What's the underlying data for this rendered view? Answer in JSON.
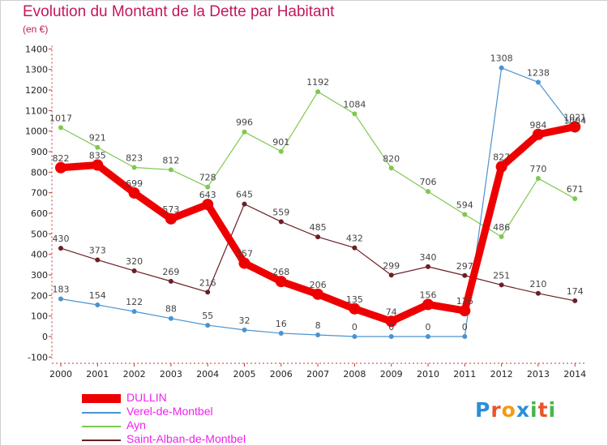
{
  "title": "Evolution du Montant de la Dette par Habitant",
  "unit_label": "(en €)",
  "logo": {
    "text": "Proxiti",
    "letters": [
      "P",
      "r",
      "o",
      "x",
      "i",
      "t",
      "i"
    ],
    "colors": [
      "#2b8fd6",
      "#e8542a",
      "#f39c12",
      "#2b8fd6",
      "#43b649",
      "#e8542a",
      "#43b649"
    ]
  },
  "chart_data": {
    "type": "line",
    "x": [
      "2000",
      "2001",
      "2002",
      "2003",
      "2004",
      "2005",
      "2006",
      "2007",
      "2008",
      "2009",
      "2010",
      "2011",
      "2012",
      "2013",
      "2014"
    ],
    "ylim": [
      -100,
      1400
    ],
    "yticks": [
      "-100",
      "0",
      "100",
      "200",
      "300",
      "400",
      "500",
      "600",
      "700",
      "800",
      "900",
      "1000",
      "1100",
      "1200",
      "1300",
      "1400"
    ],
    "grid": false,
    "legend_position": "bottom-left",
    "series": [
      {
        "name": "Saint-Alban-de-Montbel",
        "color": "#6b1f24",
        "width": 1.2,
        "label_color": "#444444",
        "values": [
          430,
          373,
          320,
          269,
          216,
          645,
          559,
          485,
          432,
          299,
          340,
          297,
          251,
          210,
          174
        ],
        "labels": [
          "430",
          "373",
          "320",
          "269",
          "216",
          "645",
          "559",
          "485",
          "432",
          "299",
          "340",
          "297",
          "251",
          "210",
          "174"
        ]
      },
      {
        "name": "Ayn",
        "color": "#7ec850",
        "width": 1.2,
        "label_color": "#444444",
        "values": [
          1017,
          921,
          823,
          812,
          728,
          996,
          901,
          1192,
          1084,
          820,
          706,
          594,
          486,
          770,
          671
        ],
        "labels": [
          "1017",
          "921",
          "823",
          "812",
          "728",
          "996",
          "901",
          "1192",
          "1084",
          "820",
          "706",
          "594",
          "486",
          "770",
          "671"
        ]
      },
      {
        "name": "Verel-de-Montbel",
        "color": "#4b93d0",
        "width": 1.2,
        "label_color": "#444444",
        "values": [
          183,
          154,
          122,
          88,
          55,
          32,
          16,
          8,
          0,
          0,
          0,
          0,
          1308,
          1238,
          1004
        ],
        "labels": [
          "183",
          "154",
          "122",
          "88",
          "55",
          "32",
          "16",
          "8",
          "0",
          "0",
          "0",
          "0",
          "1308",
          "1238",
          "1004"
        ]
      },
      {
        "name": "DULLIN",
        "color": "#ee0000",
        "width": 9,
        "label_color": "#444444",
        "values": [
          822,
          835,
          699,
          573,
          643,
          357,
          268,
          206,
          135,
          74,
          156,
          126,
          827,
          984,
          1021
        ],
        "labels": [
          "822",
          "835",
          "699",
          "573",
          "643",
          "357",
          "268",
          "206",
          "135",
          "74",
          "156",
          "126",
          "827",
          "984",
          "1021"
        ]
      }
    ],
    "legend": [
      {
        "name": "DULLIN",
        "color": "#ee0000",
        "text_color": "#ee22ee",
        "thick": true
      },
      {
        "name": "Verel-de-Montbel",
        "color": "#4b93d0",
        "text_color": "#ee22ee",
        "thick": false
      },
      {
        "name": "Ayn",
        "color": "#7ec850",
        "text_color": "#ee22ee",
        "thick": false
      },
      {
        "name": "Saint-Alban-de-Montbel",
        "color": "#6b1f24",
        "text_color": "#ee22ee",
        "thick": false
      }
    ]
  }
}
